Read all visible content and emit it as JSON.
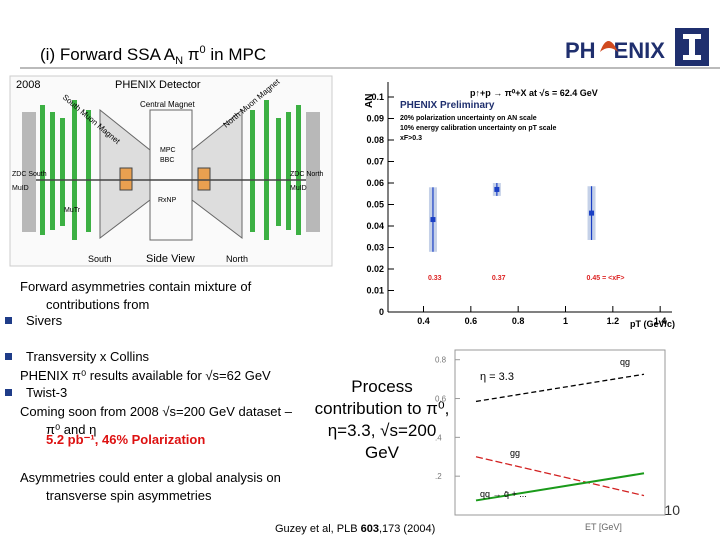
{
  "header": {
    "title": {
      "pre": "(i) Forward SSA A",
      "sub": "N",
      "mid": " π",
      "sup": "0",
      "post": " in MPC"
    },
    "logo": {
      "left": "PH",
      "right": "ENIX"
    }
  },
  "detector": {
    "year": "2008",
    "title": "PHENIX Detector",
    "central_magnet": "Central Magnet",
    "south_magnet": "South Muon Magnet",
    "north_magnet": "North Muon Magnet",
    "mpc": "MPC",
    "bbc": "BBC",
    "rxnp": "RxNP",
    "zdc_south": "ZDC South",
    "zdc_north": "ZDC North",
    "muid_left": "MuID",
    "muid_right": "MuID",
    "mutr": "MuTr",
    "south": "South",
    "view": "Side View",
    "north": "North"
  },
  "text": {
    "intro": "Forward asymmetries contain mixture of contributions from",
    "bullets": [
      "Sivers",
      "Transversity x Collins",
      "Twist-3"
    ],
    "results": "PHENIX π⁰ results available for √s=62 GeV",
    "coming": "Coming soon from 2008 √s=200 GeV dataset – π⁰ and η",
    "stats": "5.2 pb⁻¹, 46% Polarization",
    "global": "Asymmetries could enter a global analysis on transverse spin asymmetries",
    "process": "Process contribution to π⁰, η=3.3, √s=200 GeV"
  },
  "citation": {
    "pre": "Guzey et al, PLB ",
    "bold": "603",
    "post": ",173 (2004)"
  },
  "page_number": "10",
  "asymmetry_plot": {
    "type": "scatter",
    "title": "p↑+p → π⁰+X at √s = 62.4 GeV",
    "legend_title": "PHENIX Preliminary",
    "notes": [
      "20% polarization uncertainty on AN scale",
      "10% energy calibration uncertainty on pT scale",
      "xF>0.3"
    ],
    "y_label": "AN",
    "x_label": "pT (GeV/c)",
    "x": [
      0.44,
      0.71,
      1.11
    ],
    "values": [
      0.043,
      0.057,
      0.046
    ],
    "errors": [
      0.015,
      0.003,
      0.0125
    ],
    "xf_labels": [
      "0.33",
      "0.37",
      "0.45 = <xF>"
    ],
    "color": "#1a3fc4",
    "xlim": [
      0.25,
      1.45
    ],
    "ylim": [
      0,
      0.1
    ],
    "xticks": [
      0.4,
      0.6,
      0.8,
      1,
      1.2,
      1.4
    ],
    "yticks": [
      0,
      0.01,
      0.02,
      0.03,
      0.04,
      0.05,
      0.06,
      0.07,
      0.08,
      0.09,
      0.1
    ]
  },
  "process_plot": {
    "type": "line",
    "label": "η = 3.3",
    "x_label": "ET [GeV]",
    "x": [
      0.1,
      0.9
    ],
    "series": [
      {
        "name": "qg",
        "color": "#000000",
        "values": [
          0.585,
          0.725
        ]
      },
      {
        "name": "gg",
        "color": "#d22020",
        "values": [
          0.3,
          0.1
        ]
      },
      {
        "name": "qq → q̄ + ...",
        "color": "#1a9a1a",
        "values": [
          0.075,
          0.215
        ]
      }
    ],
    "xlim": [
      0,
      1
    ],
    "ylim": [
      0,
      0.85
    ],
    "yticks": [
      {
        "value": 0.2,
        "label": ".2"
      },
      {
        "value": 0.4,
        "label": ".4"
      },
      {
        "value": 0.6,
        "label": "0.6"
      },
      {
        "value": 0.8,
        "label": "0.8"
      }
    ]
  }
}
